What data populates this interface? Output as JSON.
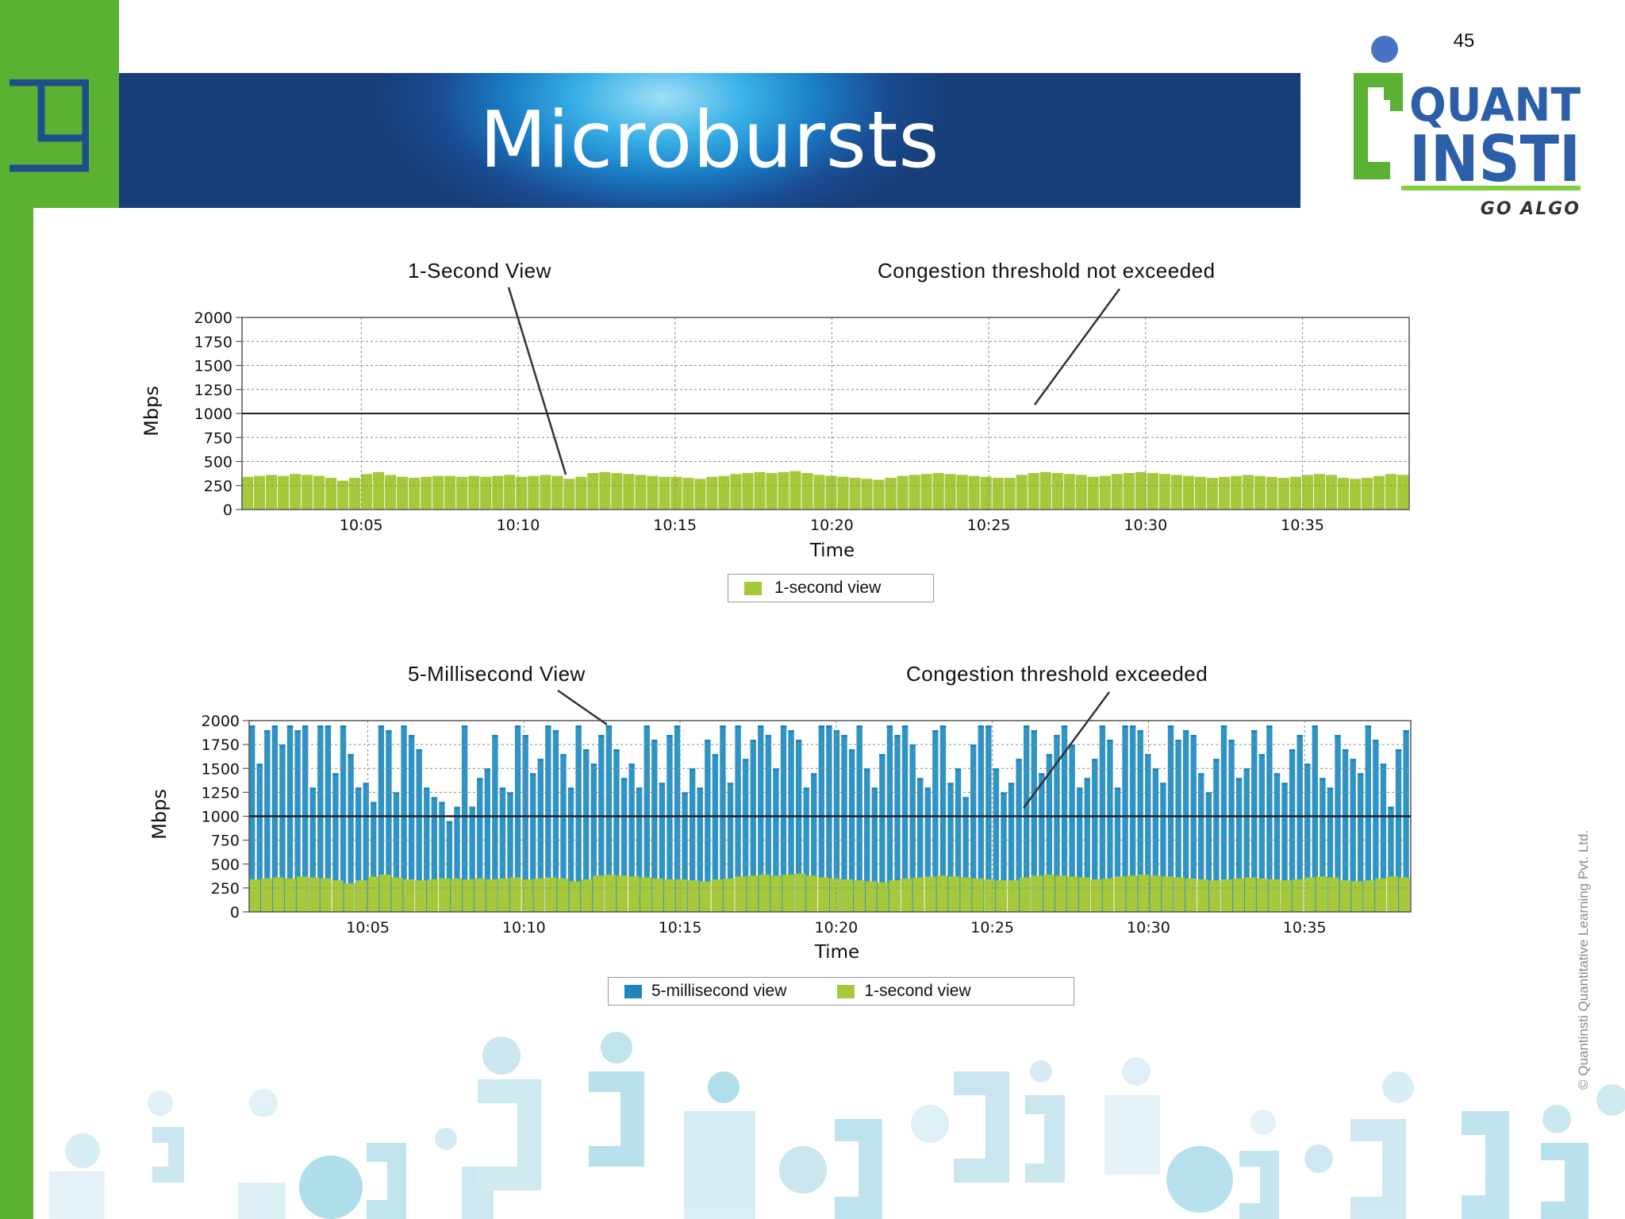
{
  "slide": {
    "title": "Microbursts",
    "number": "45",
    "copyright": "© Quantinsti Quantitative Learning Pvt. Ltd."
  },
  "logo": {
    "word1": "QUANT",
    "word2": "INSTI",
    "tagline": "GO ALGO",
    "colors": {
      "green": "#5bb131",
      "blue": "#2c5fa8",
      "dot": "#4a72c4"
    }
  },
  "theme": {
    "accent_green": "#5bb131",
    "banner_blue": "#1a4d93",
    "series_green": "#a5c93a",
    "series_blue": "#2f93c4"
  },
  "chart_data": [
    {
      "type": "bar",
      "annotations": {
        "left": "1-Second View",
        "right": "Congestion threshold not exceeded"
      },
      "xlabel": "Time",
      "ylabel": "Mbps",
      "ylim": [
        0,
        2000
      ],
      "yticks": [
        "0",
        "250",
        "500",
        "750",
        "1000",
        "1250",
        "1500",
        "1750",
        "2000"
      ],
      "xtick_labels": [
        "10:05",
        "10:10",
        "10:15",
        "10:20",
        "10:25",
        "10:30",
        "10:35"
      ],
      "x_range_minutes": [
        1.2,
        38.4
      ],
      "xtick_minutes": [
        5,
        10,
        15,
        20,
        25,
        30,
        35
      ],
      "threshold": 1000,
      "grid": true,
      "legend_position": "bottom-center",
      "series": [
        {
          "name": "1-second view",
          "color": "#a5c93a",
          "values": [
            340,
            350,
            360,
            350,
            370,
            360,
            350,
            330,
            300,
            330,
            370,
            390,
            360,
            340,
            330,
            340,
            350,
            350,
            340,
            350,
            340,
            350,
            360,
            340,
            350,
            360,
            350,
            320,
            340,
            380,
            390,
            380,
            370,
            360,
            350,
            340,
            340,
            330,
            320,
            340,
            350,
            370,
            380,
            390,
            380,
            390,
            400,
            380,
            360,
            350,
            340,
            330,
            320,
            310,
            330,
            350,
            360,
            370,
            380,
            370,
            360,
            350,
            340,
            330,
            330,
            360,
            380,
            390,
            380,
            370,
            360,
            340,
            350,
            370,
            380,
            390,
            380,
            370,
            360,
            350,
            340,
            330,
            340,
            350,
            360,
            350,
            340,
            330,
            340,
            360,
            370,
            360,
            330,
            320,
            330,
            350,
            370,
            360
          ]
        }
      ]
    },
    {
      "type": "bar",
      "annotations": {
        "left": "5-Millisecond View",
        "right": "Congestion threshold exceeded"
      },
      "xlabel": "Time",
      "ylabel": "Mbps",
      "ylim": [
        0,
        2000
      ],
      "yticks": [
        "0",
        "250",
        "500",
        "750",
        "1000",
        "1250",
        "1500",
        "1750",
        "2000"
      ],
      "xtick_labels": [
        "10:05",
        "10:10",
        "10:15",
        "10:20",
        "10:25",
        "10:30",
        "10:35"
      ],
      "x_range_minutes": [
        1.2,
        38.4
      ],
      "xtick_minutes": [
        5,
        10,
        15,
        20,
        25,
        30,
        35
      ],
      "threshold": 1000,
      "grid": true,
      "legend_position": "bottom-center",
      "series": [
        {
          "name": "5-millisecond view",
          "color": "#2f93c4",
          "values": [
            1950,
            1550,
            1900,
            1950,
            1750,
            1950,
            1900,
            1950,
            1300,
            1950,
            1950,
            1450,
            1950,
            1650,
            1300,
            1350,
            1150,
            1950,
            1900,
            1250,
            1950,
            1850,
            1700,
            1300,
            1200,
            1150,
            950,
            1100,
            1950,
            1100,
            1400,
            1500,
            1850,
            1300,
            1250,
            1950,
            1850,
            1450,
            1600,
            1950,
            1900,
            1650,
            1300,
            1950,
            1700,
            1550,
            1850,
            1950,
            1700,
            1400,
            1550,
            1300,
            1950,
            1800,
            1350,
            1850,
            1950,
            1250,
            1500,
            1300,
            1800,
            1650,
            1950,
            1350,
            1950,
            1600,
            1800,
            1950,
            1850,
            1500,
            1950,
            1900,
            1800,
            1300,
            1450,
            1950,
            1950,
            1900,
            1850,
            1700,
            1950,
            1500,
            1300,
            1650,
            1950,
            1850,
            1950,
            1750,
            1400,
            1300,
            1900,
            1950,
            1350,
            1500,
            1200,
            1750,
            1950,
            1950,
            1500,
            1250,
            1350,
            1600,
            1950,
            1900,
            1450,
            1650,
            1850,
            1950,
            1750,
            1300,
            1400,
            1600,
            1950,
            1800,
            1300,
            1950,
            1950,
            1900,
            1650,
            1500,
            1350,
            1950,
            1800,
            1900,
            1850,
            1450,
            1250,
            1600,
            1950,
            1800,
            1400,
            1500,
            1900,
            1650,
            1950,
            1450,
            1350,
            1700,
            1850,
            1550,
            1950,
            1400,
            1300,
            1850,
            1700,
            1600,
            1450,
            1950,
            1800,
            1550,
            1100,
            1700,
            1900
          ]
        },
        {
          "name": "1-second view",
          "color": "#a5c93a",
          "values": [
            340,
            350,
            360,
            350,
            370,
            360,
            350,
            330,
            300,
            330,
            370,
            390,
            360,
            340,
            330,
            340,
            350,
            350,
            340,
            350,
            340,
            350,
            360,
            340,
            350,
            360,
            350,
            320,
            340,
            380,
            390,
            380,
            370,
            360,
            350,
            340,
            340,
            330,
            320,
            340,
            350,
            370,
            380,
            390,
            380,
            390,
            400,
            380,
            360,
            350,
            340,
            330,
            320,
            310,
            330,
            350,
            360,
            370,
            380,
            370,
            360,
            350,
            340,
            330,
            330,
            360,
            380,
            390,
            380,
            370,
            360,
            340,
            350,
            370,
            380,
            390,
            380,
            370,
            360,
            350,
            340,
            330,
            340,
            350,
            360,
            350,
            340,
            330,
            340,
            360,
            370,
            360,
            330,
            320,
            330,
            350,
            370,
            360
          ]
        }
      ]
    }
  ]
}
